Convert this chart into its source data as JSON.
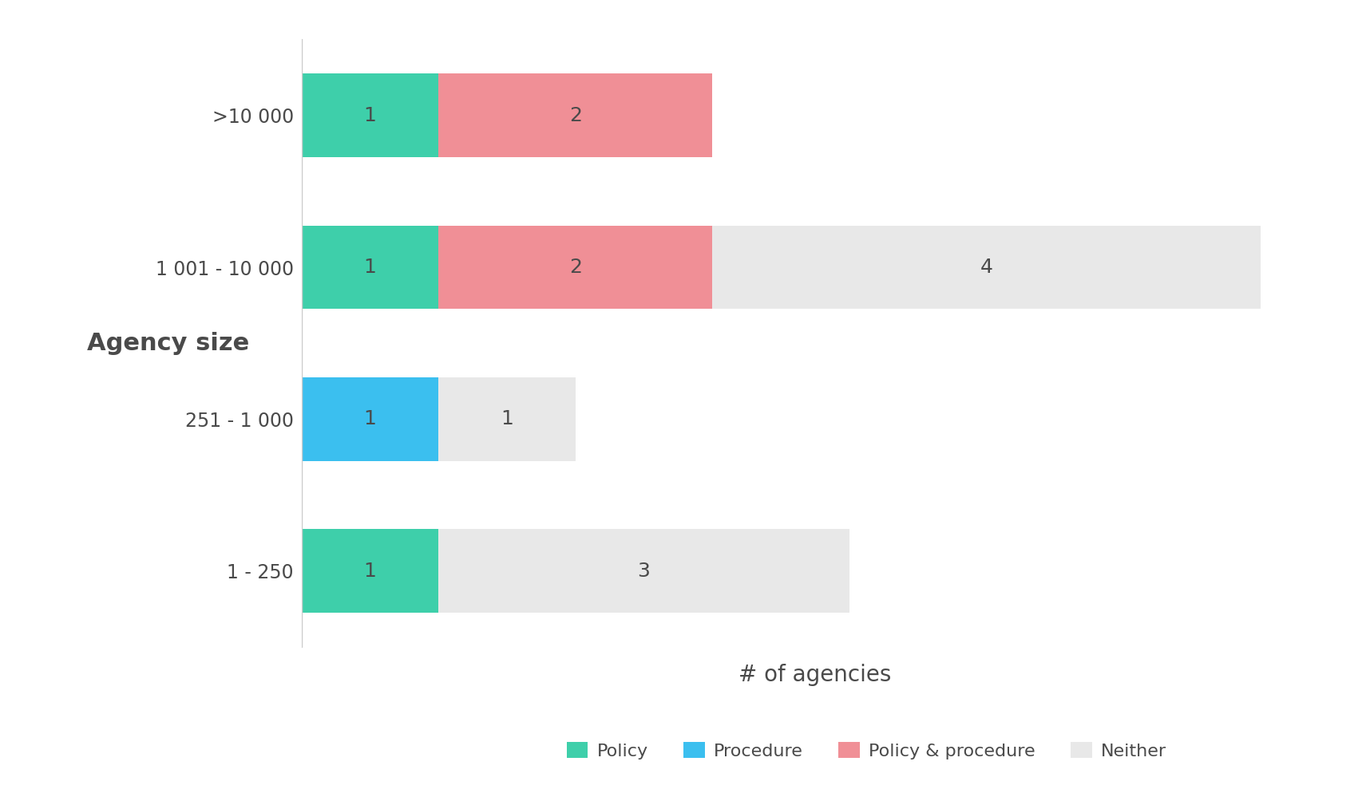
{
  "categories": [
    "1 - 250",
    "251 - 1 000",
    "1 001 - 10 000",
    ">10 000"
  ],
  "series": {
    "Policy": [
      1,
      0,
      1,
      1
    ],
    "Procedure": [
      0,
      1,
      0,
      0
    ],
    "Policy & procedure": [
      0,
      0,
      2,
      2
    ],
    "Neither": [
      3,
      1,
      4,
      0
    ]
  },
  "colors": {
    "Policy": "#3ecfaa",
    "Procedure": "#3bbfef",
    "Policy & procedure": "#f08f96",
    "Neither": "#e8e8e8"
  },
  "bar_height": 0.55,
  "xlabel": "# of agencies",
  "agency_size_label": "Agency size",
  "background_color": "#ffffff",
  "text_color": "#4a4a4a",
  "label_fontsize": 18,
  "tick_fontsize": 17,
  "legend_fontsize": 16,
  "xlabel_fontsize": 20,
  "agency_label_fontsize": 22,
  "xlim": [
    0,
    7.5
  ]
}
